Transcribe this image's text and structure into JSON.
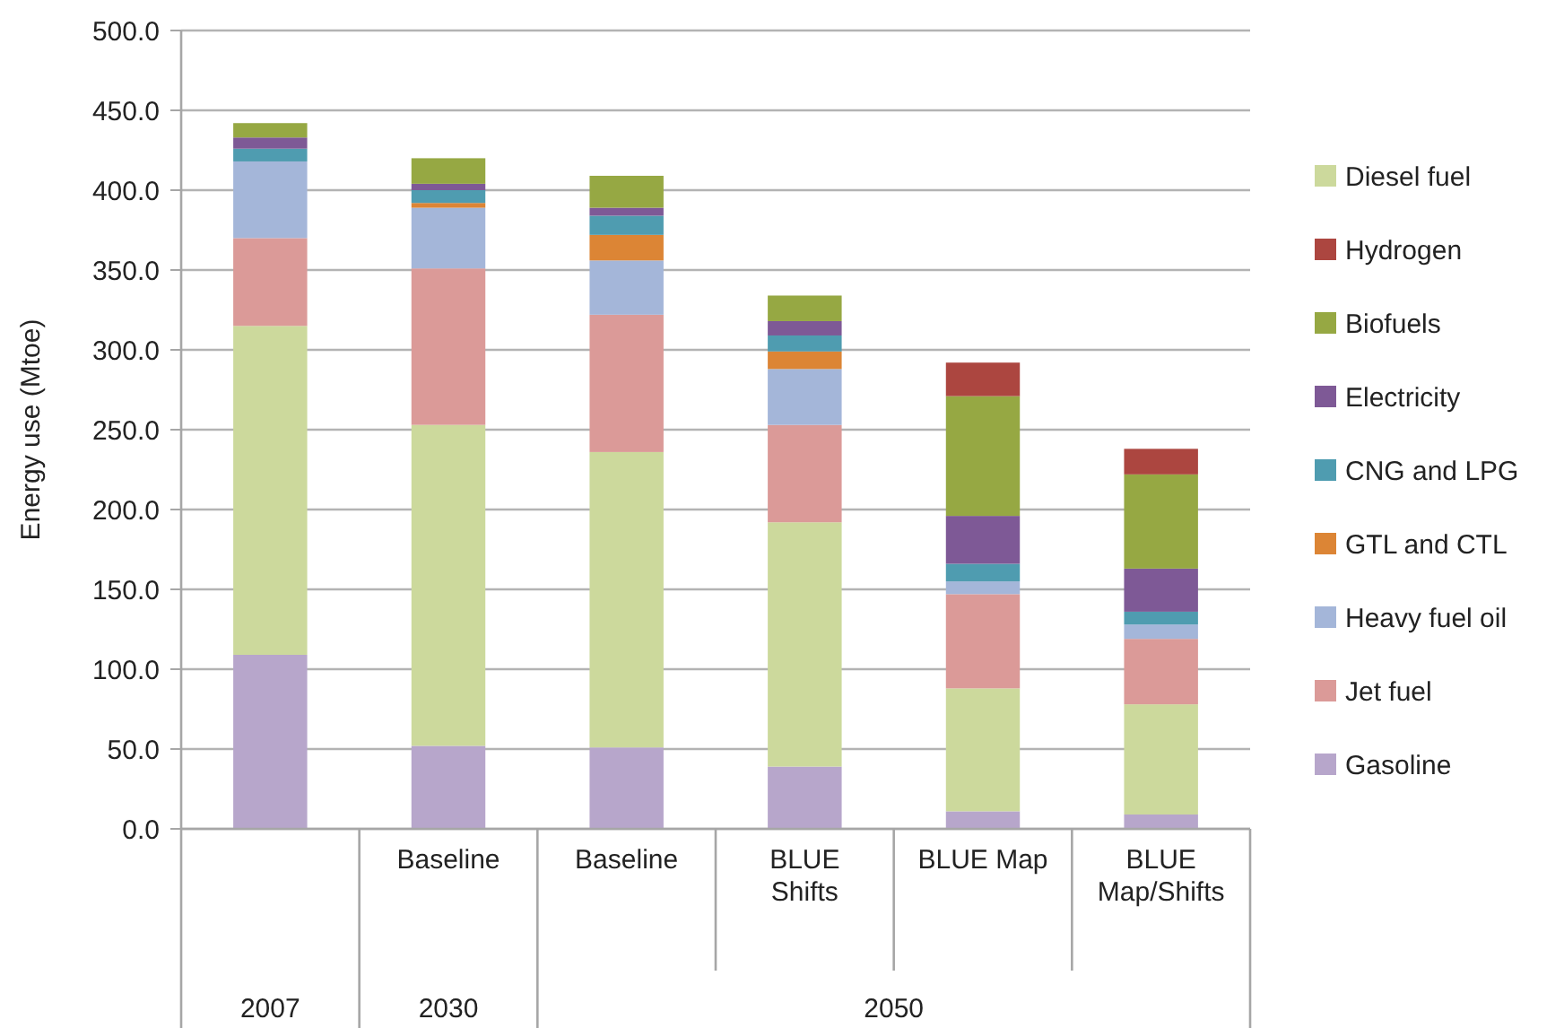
{
  "chart_data": {
    "type": "bar",
    "stacked": true,
    "ylabel": "Energy use (Mtoe)",
    "categories": [
      null,
      "Baseline",
      "Baseline",
      "BLUE Shifts",
      "BLUE Map",
      "BLUE Map/Shifts"
    ],
    "annotations": [
      "2007",
      "2030",
      "2050"
    ],
    "ylim": [
      0,
      500
    ],
    "yticks": [
      {
        "value": 0,
        "label": "0.0"
      },
      {
        "value": 50,
        "label": "50.0"
      },
      {
        "value": 100,
        "label": "100.0"
      },
      {
        "value": 150,
        "label": "150.0"
      },
      {
        "value": 200,
        "label": "200.0"
      },
      {
        "value": 250,
        "label": "250.0"
      },
      {
        "value": 300,
        "label": "300.0"
      },
      {
        "value": 350,
        "label": "350.0"
      },
      {
        "value": 400,
        "label": "400.0"
      },
      {
        "value": 450,
        "label": "450.0"
      },
      {
        "value": 500,
        "label": "500.0"
      }
    ],
    "grid": "y",
    "legend": "right",
    "series": [
      {
        "name": "Gasoline",
        "color": "#b7a6cb",
        "values": [
          109,
          52,
          51,
          39,
          11,
          9
        ]
      },
      {
        "name": "Diesel fuel",
        "color": "#ccd99c",
        "values": [
          206,
          201,
          185,
          153,
          77,
          69
        ]
      },
      {
        "name": "Jet fuel",
        "color": "#db9a98",
        "values": [
          55,
          98,
          86,
          61,
          59,
          41
        ]
      },
      {
        "name": "Heavy fuel oil",
        "color": "#a4b6d9",
        "values": [
          48,
          38,
          34,
          35,
          8,
          9
        ]
      },
      {
        "name": "GTL and CTL",
        "color": "#dc8535",
        "values": [
          null,
          3,
          16,
          11,
          null,
          null
        ]
      },
      {
        "name": "CNG and LPG",
        "color": "#4f9cb0",
        "values": [
          8,
          8,
          12,
          10,
          11,
          8
        ]
      },
      {
        "name": "Electricity",
        "color": "#7e5996",
        "values": [
          7,
          4,
          5,
          9,
          30,
          27
        ]
      },
      {
        "name": "Biofuels",
        "color": "#96a843",
        "values": [
          9,
          16,
          20,
          16,
          75,
          59
        ]
      },
      {
        "name": "Hydrogen",
        "color": "#ac4640",
        "values": [
          null,
          null,
          null,
          null,
          21,
          16
        ]
      }
    ]
  }
}
